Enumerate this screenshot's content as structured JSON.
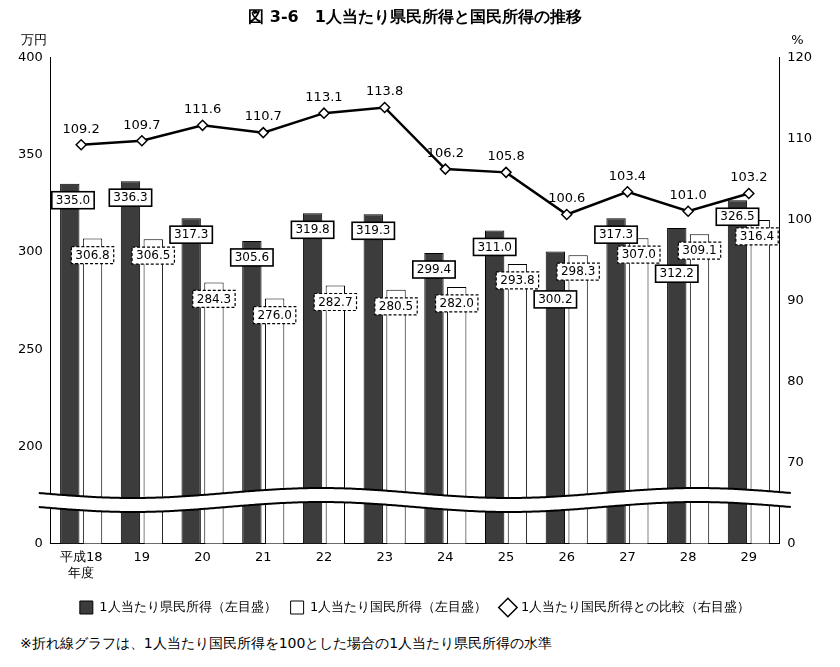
{
  "chart_data": {
    "type": "bar",
    "title": "図 3-6　1人当たり県民所得と国民所得の推移",
    "footnote": "※折れ線グラフは、1人当たり国民所得を100とした場合の1人当たり県民所得の水準",
    "y_label": "万円",
    "y2_label": "%",
    "categories": [
      "平成18\n年度",
      "19",
      "20",
      "21",
      "22",
      "23",
      "24",
      "25",
      "26",
      "27",
      "28",
      "29"
    ],
    "series": [
      {
        "name": "1人当たり県民所得（左目盛）",
        "type": "bar",
        "color": "#3c3c3c",
        "values": [
          335.0,
          336.3,
          317.3,
          305.6,
          319.8,
          319.3,
          299.4,
          311.0,
          300.2,
          317.3,
          312.2,
          326.5
        ],
        "value_labels": [
          "335.0",
          "336.3",
          "317.3",
          "305.6",
          "319.8",
          "319.3",
          "299.4",
          "311.0",
          "300.2",
          "317.3",
          "312.2",
          "326.5"
        ]
      },
      {
        "name": "1人当たり国民所得（左目盛）",
        "type": "bar",
        "color": "#ffffff",
        "values": [
          306.8,
          306.5,
          284.3,
          276.0,
          282.7,
          280.5,
          282.0,
          293.8,
          298.3,
          307.0,
          309.1,
          316.4
        ],
        "value_labels": [
          "306.8",
          "306.5",
          "284.3",
          "276.0",
          "282.7",
          "280.5",
          "282.0",
          "293.8",
          "298.3",
          "307.0",
          "309.1",
          "316.4"
        ]
      },
      {
        "name": "1人当たり国民所得との比較（右目盛）",
        "type": "line",
        "color": "#000000",
        "marker": "diamond",
        "axis": "y2",
        "values": [
          109.2,
          109.7,
          111.6,
          110.7,
          113.1,
          113.8,
          106.2,
          105.8,
          100.6,
          103.4,
          101.0,
          103.2
        ],
        "value_labels": [
          "109.2",
          "109.7",
          "111.6",
          "110.7",
          "113.1",
          "113.8",
          "106.2",
          "105.8",
          "100.6",
          "103.4",
          "101.0",
          "103.2"
        ]
      }
    ],
    "ylim": [
      0,
      400
    ],
    "yticks": [
      0,
      200,
      250,
      300,
      350,
      400
    ],
    "y2lim": [
      0,
      120
    ],
    "y2ticks": [
      0,
      70,
      80,
      90,
      100,
      110,
      120
    ],
    "grid": false,
    "legend": "bottom",
    "data_labels": true
  }
}
